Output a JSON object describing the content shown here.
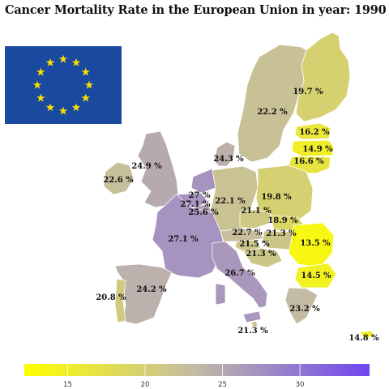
{
  "title": "Cancer Mortality Rate in the European Union in year:  1990",
  "colors": {
    "scale_low": "#ffff00",
    "scale_mid": "#c2baa6",
    "scale_high": "#6f46f0",
    "flag_blue": "#1a4aa0",
    "flag_star": "#ffdd00"
  },
  "legend": {
    "type": "continuous-colorbar",
    "position": "bottom",
    "min": 12.2,
    "max": 34.5,
    "ticks": [
      {
        "value": 15,
        "label": "15"
      },
      {
        "value": 20,
        "label": "20"
      },
      {
        "value": 25,
        "label": "25"
      },
      {
        "value": 30,
        "label": "30"
      }
    ]
  },
  "regions": [
    {
      "id": "finland",
      "label": "19.7 %",
      "value": 19.7
    },
    {
      "id": "sweden",
      "label": "22.2 %",
      "value": 22.2
    },
    {
      "id": "estonia",
      "label": "16.2 %",
      "value": 16.2
    },
    {
      "id": "latvia",
      "label": "14.9 %",
      "value": 14.9
    },
    {
      "id": "lithuania",
      "label": "16.6 %",
      "value": 16.6
    },
    {
      "id": "denmark",
      "label": "24.3 %",
      "value": 24.3
    },
    {
      "id": "uk",
      "label": "24.9 %",
      "value": 24.9
    },
    {
      "id": "ireland",
      "label": "22.6 %",
      "value": 22.6
    },
    {
      "id": "netherlands",
      "label": "27 %",
      "value": 27.0
    },
    {
      "id": "belgium",
      "label": "27.1 %",
      "value": 27.1
    },
    {
      "id": "luxembourg",
      "label": "25.6 %",
      "value": 25.6
    },
    {
      "id": "germany",
      "label": "22.1 %",
      "value": 22.1
    },
    {
      "id": "poland",
      "label": "19.8 %",
      "value": 19.8
    },
    {
      "id": "czechia",
      "label": "21.1 %",
      "value": 21.1
    },
    {
      "id": "slovakia",
      "label": "18.9 %",
      "value": 18.9
    },
    {
      "id": "austria",
      "label": "22.7 %",
      "value": 22.7
    },
    {
      "id": "hungary",
      "label": "21.3 %",
      "value": 21.3
    },
    {
      "id": "slovenia",
      "label": "21.5 %",
      "value": 21.5
    },
    {
      "id": "croatia",
      "label": "21.3 %",
      "value": 21.3
    },
    {
      "id": "romania",
      "label": "13.5 %",
      "value": 13.5
    },
    {
      "id": "bulgaria",
      "label": "14.5 %",
      "value": 14.5
    },
    {
      "id": "france",
      "label": "27.1 %",
      "value": 27.1
    },
    {
      "id": "italy",
      "label": "26.7 %",
      "value": 26.7
    },
    {
      "id": "spain",
      "label": "24.2 %",
      "value": 24.2
    },
    {
      "id": "portugal",
      "label": "20.8 %",
      "value": 20.8
    },
    {
      "id": "greece",
      "label": "23.2 %",
      "value": 23.2
    },
    {
      "id": "malta",
      "label": "21.3 %",
      "value": 21.3
    },
    {
      "id": "cyprus",
      "label": "14.8 %",
      "value": 14.8
    }
  ]
}
